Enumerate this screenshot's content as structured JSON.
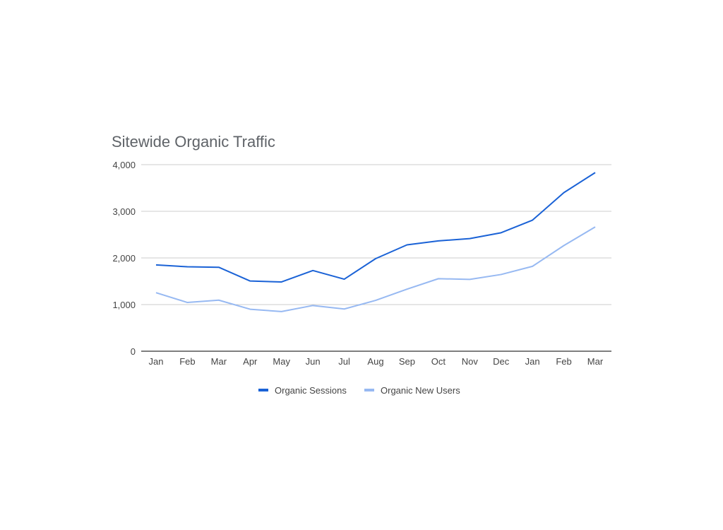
{
  "chart_data": {
    "type": "line",
    "title": "Sitewide Organic Traffic",
    "xlabel": "",
    "ylabel": "",
    "categories": [
      "Jan",
      "Feb",
      "Mar",
      "Apr",
      "May",
      "Jun",
      "Jul",
      "Aug",
      "Sep",
      "Oct",
      "Nov",
      "Dec",
      "Jan",
      "Feb",
      "Mar"
    ],
    "y_ticks": [
      "0",
      "1,000",
      "2,000",
      "3,000",
      "4,000"
    ],
    "ylim": [
      0,
      4000
    ],
    "grid": true,
    "legend_position": "bottom",
    "series": [
      {
        "name": "Organic Sessions",
        "color": "#1a62d6",
        "values": [
          1850,
          1810,
          1800,
          1505,
          1485,
          1730,
          1545,
          1985,
          2280,
          2365,
          2415,
          2540,
          2810,
          3400,
          3830
        ]
      },
      {
        "name": "Organic New Users",
        "color": "#97b9f2",
        "values": [
          1255,
          1045,
          1095,
          900,
          850,
          980,
          905,
          1090,
          1330,
          1555,
          1540,
          1645,
          1820,
          2265,
          2665
        ]
      }
    ]
  }
}
